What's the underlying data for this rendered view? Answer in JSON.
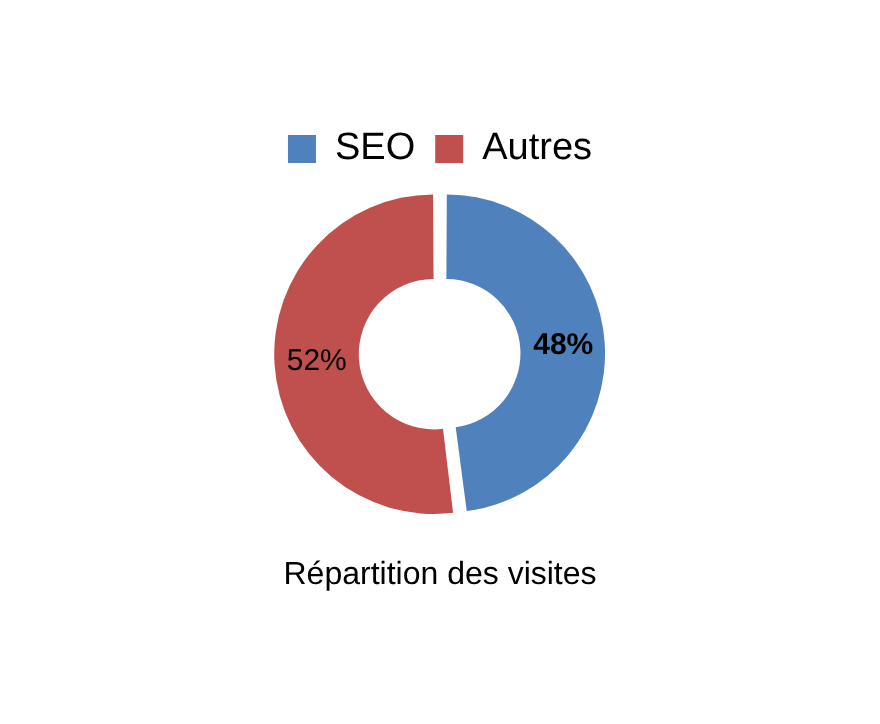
{
  "chart_data": {
    "type": "donut",
    "categories": [
      "SEO",
      "Autres"
    ],
    "values": [
      48,
      52
    ],
    "colors": [
      "#4f81bd",
      "#c0504d"
    ],
    "value_labels": [
      "48%",
      "52%"
    ],
    "legend": "top",
    "annotations": [
      "Répartition des visites"
    ]
  }
}
